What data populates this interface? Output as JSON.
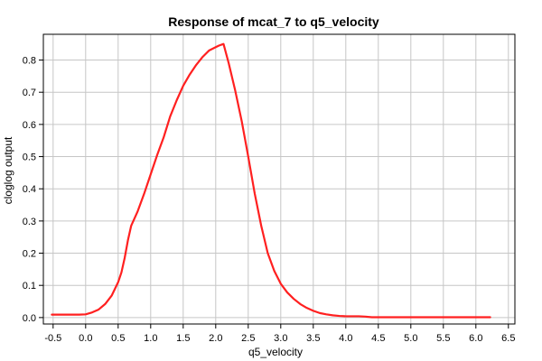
{
  "chart_data": {
    "type": "line",
    "title": "Response of mcat_7 to q5_velocity",
    "xlabel": "q5_velocity",
    "ylabel": "cloglog output",
    "xlim": [
      -0.65,
      6.6
    ],
    "ylim": [
      -0.02,
      0.88
    ],
    "x_ticks": [
      -0.5,
      0.0,
      0.5,
      1.0,
      1.5,
      2.0,
      2.5,
      3.0,
      3.5,
      4.0,
      4.5,
      5.0,
      5.5,
      6.0,
      6.5
    ],
    "x_tick_labels": [
      "-0.5",
      "0.0",
      "0.5",
      "1.0",
      "1.5",
      "2.0",
      "2.5",
      "3.0",
      "3.5",
      "4.0",
      "4.5",
      "5.0",
      "5.5",
      "6.0",
      "6.5"
    ],
    "y_ticks": [
      0.0,
      0.1,
      0.2,
      0.3,
      0.4,
      0.5,
      0.6,
      0.7,
      0.8
    ],
    "y_tick_labels": [
      "0.0",
      "0.1",
      "0.2",
      "0.3",
      "0.4",
      "0.5",
      "0.6",
      "0.7",
      "0.8"
    ],
    "grid": true,
    "color": "#ff2020",
    "series": [
      {
        "x": [
          -0.52,
          -0.3,
          -0.1,
          0.0,
          0.1,
          0.2,
          0.3,
          0.4,
          0.5,
          0.55,
          0.6,
          0.65,
          0.7,
          0.8,
          0.9,
          1.0,
          1.1,
          1.2,
          1.3,
          1.4,
          1.5,
          1.6,
          1.7,
          1.8,
          1.9,
          2.0,
          2.05,
          2.12,
          2.2,
          2.3,
          2.4,
          2.5,
          2.6,
          2.7,
          2.8,
          2.9,
          3.0,
          3.1,
          3.2,
          3.3,
          3.4,
          3.5,
          3.6,
          3.7,
          3.8,
          3.9,
          4.0,
          4.1,
          4.2,
          4.3,
          4.4,
          4.6,
          5.0,
          5.5,
          6.0,
          6.22
        ],
        "y": [
          0.009,
          0.009,
          0.009,
          0.01,
          0.016,
          0.025,
          0.042,
          0.068,
          0.11,
          0.14,
          0.185,
          0.24,
          0.285,
          0.33,
          0.385,
          0.445,
          0.505,
          0.56,
          0.625,
          0.675,
          0.72,
          0.755,
          0.785,
          0.81,
          0.83,
          0.84,
          0.845,
          0.85,
          0.79,
          0.705,
          0.61,
          0.5,
          0.385,
          0.285,
          0.2,
          0.145,
          0.105,
          0.078,
          0.058,
          0.042,
          0.03,
          0.021,
          0.014,
          0.01,
          0.007,
          0.005,
          0.004,
          0.004,
          0.004,
          0.003,
          0.001,
          0.001,
          0.001,
          0.001,
          0.001,
          0.001
        ]
      }
    ]
  }
}
